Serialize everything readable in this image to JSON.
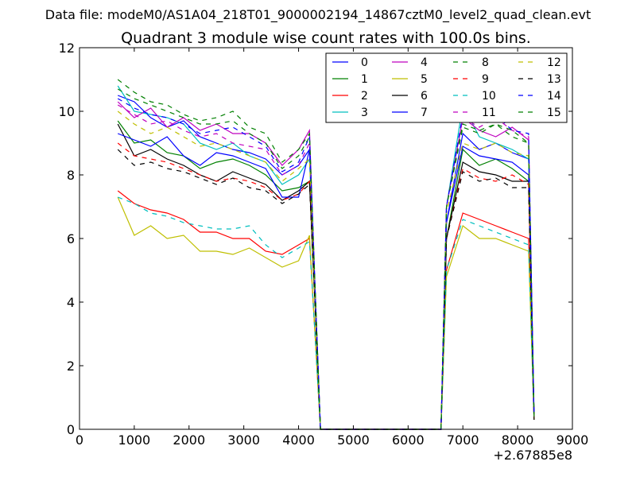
{
  "chart_data": {
    "type": "line",
    "suptitle": "Data file: modeM0/AS1A04_218T01_9000002194_14867cztM0_level2_quad_clean.evt",
    "title": "Quadrant 3 module wise count rates with 100.0s bins.",
    "xlabel": "",
    "ylabel": "",
    "x_offset_label": "+2.67885e8",
    "xlim": [
      0,
      9000
    ],
    "ylim": [
      0,
      12
    ],
    "xticks": [
      0,
      1000,
      2000,
      3000,
      4000,
      5000,
      6000,
      7000,
      8000,
      9000
    ],
    "yticks": [
      0,
      2,
      4,
      6,
      8,
      10,
      12
    ],
    "grid": false,
    "legend_position": "top-right",
    "legend_columns": 4,
    "x": [
      700,
      1000,
      1300,
      1600,
      1900,
      2200,
      2500,
      2800,
      3100,
      3400,
      3700,
      4000,
      4200,
      4300,
      4400,
      6600,
      6700,
      7000,
      7300,
      7600,
      7900,
      8200,
      8300
    ],
    "series": [
      {
        "name": "0",
        "color": "#0000ff",
        "dashed": false,
        "values": [
          10.5,
          10.3,
          9.8,
          9.5,
          9.7,
          9.2,
          9.0,
          8.8,
          8.7,
          8.5,
          8.0,
          8.3,
          8.8,
          4.5,
          0,
          0,
          6.5,
          9.3,
          8.8,
          9.0,
          8.7,
          8.5,
          0.4
        ]
      },
      {
        "name": "1",
        "color": "#008000",
        "dashed": false,
        "values": [
          9.7,
          9.0,
          9.1,
          8.7,
          8.6,
          8.2,
          8.4,
          8.5,
          8.3,
          8.0,
          7.5,
          7.6,
          7.8,
          4,
          0,
          0,
          6,
          8.8,
          8.3,
          8.5,
          8.2,
          7.8,
          0.3
        ]
      },
      {
        "name": "2",
        "color": "#ff0000",
        "dashed": false,
        "values": [
          7.5,
          7.1,
          6.9,
          6.8,
          6.6,
          6.2,
          6.2,
          6.0,
          6.0,
          5.6,
          5.5,
          5.8,
          6.0,
          3,
          0,
          0,
          5,
          6.8,
          6.6,
          6.4,
          6.2,
          6.0,
          0.3
        ]
      },
      {
        "name": "3",
        "color": "#00bfbf",
        "dashed": false,
        "values": [
          10.8,
          10.0,
          9.9,
          9.8,
          9.6,
          9.0,
          8.8,
          9.0,
          8.6,
          8.4,
          7.7,
          8.0,
          8.5,
          4.2,
          0,
          0,
          7,
          10.2,
          9.2,
          9.0,
          8.8,
          8.5,
          0.4
        ]
      },
      {
        "name": "4",
        "color": "#bf00bf",
        "dashed": false,
        "values": [
          10.3,
          9.8,
          10.1,
          9.5,
          9.8,
          9.4,
          9.6,
          9.3,
          9.3,
          9.0,
          8.3,
          8.8,
          9.4,
          4.5,
          0,
          0,
          7,
          9.8,
          9.4,
          9.2,
          9.5,
          9.1,
          0.4
        ]
      },
      {
        "name": "5",
        "color": "#bfbf00",
        "dashed": false,
        "values": [
          7.3,
          6.1,
          6.4,
          6.0,
          6.1,
          5.6,
          5.6,
          5.5,
          5.7,
          5.4,
          5.1,
          5.3,
          6.1,
          3,
          0,
          0,
          4.8,
          6.4,
          6.0,
          6.0,
          5.8,
          5.6,
          0.3
        ]
      },
      {
        "name": "6",
        "color": "#000000",
        "dashed": false,
        "values": [
          9.6,
          8.6,
          8.8,
          8.5,
          8.3,
          8.0,
          7.8,
          8.1,
          7.9,
          7.7,
          7.2,
          7.5,
          7.8,
          4,
          0,
          0,
          6,
          8.4,
          8.1,
          8.0,
          7.8,
          7.8,
          0.3
        ]
      },
      {
        "name": "7",
        "color": "#0000ff",
        "dashed": false,
        "values": [
          9.3,
          9.1,
          8.9,
          9.2,
          8.6,
          8.3,
          8.7,
          8.6,
          8.4,
          8.2,
          7.3,
          7.3,
          8.8,
          4.3,
          0,
          0,
          6.5,
          8.9,
          8.6,
          8.5,
          8.4,
          8.0,
          0.4
        ]
      },
      {
        "name": "8",
        "color": "#008000",
        "dashed": true,
        "values": [
          10.7,
          10.4,
          10.2,
          10.0,
          9.8,
          9.6,
          9.6,
          9.7,
          9.3,
          9.0,
          8.2,
          8.6,
          9.2,
          4.5,
          0,
          0,
          7,
          9.5,
          9.3,
          9.6,
          9.2,
          9.0,
          0.4
        ]
      },
      {
        "name": "9",
        "color": "#ff0000",
        "dashed": true,
        "values": [
          9.0,
          8.6,
          8.5,
          8.4,
          8.2,
          8.0,
          7.8,
          7.9,
          7.8,
          7.6,
          7.2,
          7.4,
          7.8,
          4,
          0,
          0,
          6,
          8.2,
          7.9,
          7.8,
          8.0,
          7.7,
          0.3
        ]
      },
      {
        "name": "10",
        "color": "#00bfbf",
        "dashed": true,
        "values": [
          7.3,
          7.1,
          6.8,
          6.7,
          6.5,
          6.4,
          6.3,
          6.3,
          6.4,
          5.8,
          5.4,
          5.7,
          5.9,
          3,
          0,
          0,
          5,
          6.6,
          6.4,
          6.2,
          6.0,
          5.8,
          0.3
        ]
      },
      {
        "name": "11",
        "color": "#bf00bf",
        "dashed": true,
        "values": [
          10.2,
          9.9,
          9.6,
          9.7,
          9.4,
          9.2,
          9.3,
          9.0,
          8.9,
          8.8,
          8.0,
          8.3,
          9.0,
          4.4,
          0,
          0,
          7,
          9.8,
          9.5,
          9.8,
          9.4,
          9.2,
          0.4
        ]
      },
      {
        "name": "12",
        "color": "#bfbf00",
        "dashed": true,
        "values": [
          10.0,
          9.6,
          9.3,
          9.5,
          9.2,
          8.9,
          9.0,
          8.8,
          8.6,
          8.4,
          7.8,
          8.2,
          8.5,
          4.2,
          0,
          0,
          6.8,
          9.0,
          8.8,
          9.0,
          8.7,
          8.6,
          0.4
        ]
      },
      {
        "name": "13",
        "color": "#000000",
        "dashed": true,
        "values": [
          8.8,
          8.3,
          8.4,
          8.2,
          8.1,
          7.9,
          7.7,
          7.9,
          7.6,
          7.5,
          7.1,
          7.4,
          7.7,
          3.9,
          0,
          0,
          6,
          8.1,
          7.8,
          7.9,
          7.6,
          7.6,
          0.3
        ]
      },
      {
        "name": "14",
        "color": "#0000ff",
        "dashed": true,
        "values": [
          10.4,
          10.1,
          9.9,
          9.8,
          9.6,
          9.3,
          9.4,
          9.5,
          9.2,
          8.9,
          8.1,
          8.4,
          9.2,
          4.5,
          0,
          0,
          7,
          9.9,
          9.7,
          9.9,
          9.4,
          9.3,
          0.4
        ]
      },
      {
        "name": "15",
        "color": "#008000",
        "dashed": true,
        "values": [
          11.0,
          10.6,
          10.3,
          10.2,
          9.9,
          9.7,
          9.8,
          10.0,
          9.5,
          9.3,
          8.4,
          8.8,
          9.3,
          4.6,
          0,
          0,
          7,
          9.6,
          9.4,
          9.6,
          9.4,
          9.0,
          0.4
        ]
      }
    ]
  }
}
